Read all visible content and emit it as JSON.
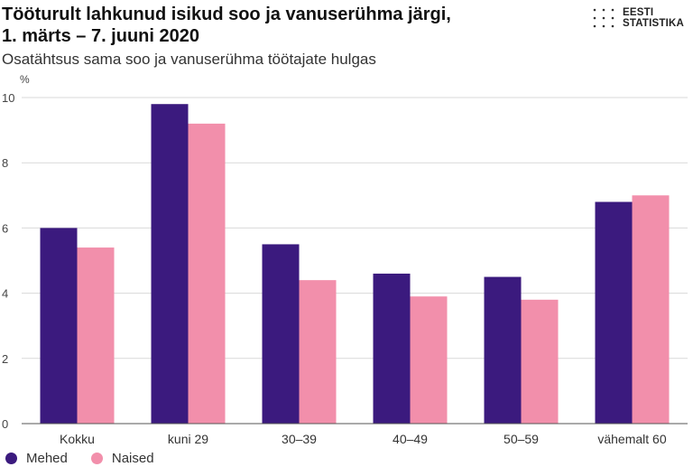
{
  "header": {
    "title_line1": "Tööturult lahkunud isikud soo ja vanuserühma järgi,",
    "title_line2": "1. märts – 7. juuni 2020",
    "subtitle": "Osatähtsus sama soo ja vanuserühma töötajate hulgas"
  },
  "logo": {
    "line1": "EESTI",
    "line2": "STATISTIKA"
  },
  "colors": {
    "mehed": "#3b1a7e",
    "naised": "#f28fab",
    "grid": "#d9d9d9",
    "axis": "#555555"
  },
  "chart_data": {
    "type": "bar",
    "title": "Tööturult lahkunud isikud soo ja vanuserühma järgi, 1. märts – 7. juuni 2020",
    "subtitle": "Osatähtsus sama soo ja vanuserühma töötajate hulgas",
    "ylabel": "%",
    "xlabel": "",
    "ylim": [
      0,
      10
    ],
    "yticks": [
      0,
      2,
      4,
      6,
      8,
      10
    ],
    "grid": true,
    "legend_position": "bottom-left",
    "categories": [
      "Kokku",
      "kuni 29",
      "30–39",
      "40–49",
      "50–59",
      "vähemalt 60"
    ],
    "series": [
      {
        "name": "Mehed",
        "color": "#3b1a7e",
        "values": [
          6.0,
          9.8,
          5.5,
          4.6,
          4.5,
          6.8
        ]
      },
      {
        "name": "Naised",
        "color": "#f28fab",
        "values": [
          5.4,
          9.2,
          4.4,
          3.9,
          3.8,
          7.0
        ]
      }
    ]
  }
}
